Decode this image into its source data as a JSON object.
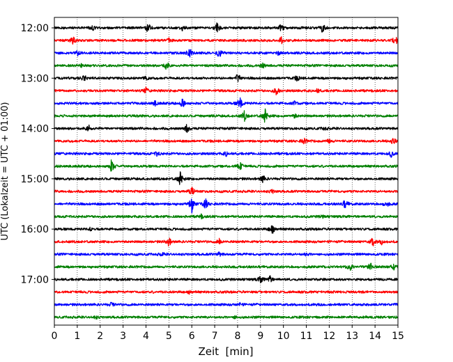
{
  "chart_data": {
    "type": "line",
    "title": "",
    "xlabel": "Zeit  [min]",
    "ylabel": "UTC (Lokalzeit = UTC + 01:00)",
    "xlim": [
      0,
      15
    ],
    "x_ticks": [
      "0",
      "1",
      "2",
      "3",
      "4",
      "5",
      "6",
      "7",
      "8",
      "9",
      "10",
      "11",
      "12",
      "13",
      "14",
      "15"
    ],
    "y_ticks": [
      "12:00",
      "13:00",
      "14:00",
      "15:00",
      "16:00",
      "17:00"
    ],
    "grid": "vertical dotted",
    "colors": [
      "#000000",
      "#ff0000",
      "#0000ff",
      "#008000"
    ],
    "series": [
      {
        "time": "12:00",
        "color": "#000000",
        "events": [
          [
            1.7,
            0.5
          ],
          [
            4.1,
            1.0
          ],
          [
            5.6,
            0.6
          ],
          [
            7.1,
            1.2
          ],
          [
            9.9,
            1.0
          ],
          [
            11.7,
            0.9
          ]
        ]
      },
      {
        "time": "12:15",
        "color": "#ff0000",
        "events": [
          [
            0.8,
            0.8
          ],
          [
            5.0,
            0.4
          ],
          [
            9.9,
            0.7
          ],
          [
            14.9,
            1.2
          ]
        ]
      },
      {
        "time": "12:30",
        "color": "#0000ff",
        "events": [
          [
            1.0,
            0.5
          ],
          [
            5.9,
            1.3
          ],
          [
            7.2,
            1.0
          ],
          [
            9.8,
            0.4
          ]
        ]
      },
      {
        "time": "12:45",
        "color": "#008000",
        "events": [
          [
            1.2,
            0.3
          ],
          [
            4.9,
            0.9
          ],
          [
            9.1,
            0.5
          ]
        ]
      },
      {
        "time": "13:00",
        "color": "#000000",
        "events": [
          [
            1.3,
            0.8
          ],
          [
            4.0,
            0.4
          ],
          [
            8.0,
            0.9
          ],
          [
            10.6,
            0.5
          ]
        ]
      },
      {
        "time": "13:15",
        "color": "#ff0000",
        "events": [
          [
            4.0,
            0.6
          ],
          [
            9.7,
            0.9
          ],
          [
            11.5,
            0.4
          ]
        ]
      },
      {
        "time": "13:30",
        "color": "#0000ff",
        "events": [
          [
            4.4,
            0.5
          ],
          [
            5.6,
            1.0
          ],
          [
            8.1,
            1.3
          ],
          [
            10.5,
            0.4
          ]
        ]
      },
      {
        "time": "13:45",
        "color": "#008000",
        "events": [
          [
            8.3,
            1.0
          ],
          [
            9.2,
            1.5
          ],
          [
            10.5,
            0.4
          ]
        ]
      },
      {
        "time": "14:00",
        "color": "#000000",
        "events": [
          [
            1.5,
            0.8
          ],
          [
            5.8,
            1.0
          ],
          [
            11.8,
            0.3
          ]
        ]
      },
      {
        "time": "14:15",
        "color": "#ff0000",
        "events": [
          [
            10.9,
            0.6
          ],
          [
            12.0,
            0.5
          ],
          [
            14.8,
            0.8
          ]
        ]
      },
      {
        "time": "14:30",
        "color": "#0000ff",
        "events": [
          [
            4.5,
            0.5
          ],
          [
            7.5,
            0.4
          ],
          [
            14.7,
            0.6
          ]
        ]
      },
      {
        "time": "14:45",
        "color": "#008000",
        "events": [
          [
            2.5,
            1.4
          ],
          [
            8.1,
            1.1
          ]
        ]
      },
      {
        "time": "15:00",
        "color": "#000000",
        "events": [
          [
            5.5,
            1.5
          ],
          [
            9.1,
            0.8
          ]
        ]
      },
      {
        "time": "15:15",
        "color": "#ff0000",
        "events": [
          [
            6.0,
            0.9
          ],
          [
            9.5,
            0.4
          ]
        ]
      },
      {
        "time": "15:30",
        "color": "#0000ff",
        "events": [
          [
            6.0,
            1.6
          ],
          [
            6.6,
            1.1
          ],
          [
            12.7,
            1.0
          ],
          [
            14.5,
            0.8
          ]
        ]
      },
      {
        "time": "15:45",
        "color": "#008000",
        "events": [
          [
            6.4,
            0.4
          ],
          [
            11.7,
            0.3
          ]
        ]
      },
      {
        "time": "16:00",
        "color": "#000000",
        "events": [
          [
            1.6,
            0.4
          ],
          [
            9.5,
            1.2
          ]
        ]
      },
      {
        "time": "16:15",
        "color": "#ff0000",
        "events": [
          [
            5.0,
            1.0
          ],
          [
            7.2,
            0.5
          ],
          [
            13.9,
            0.9
          ],
          [
            14.3,
            0.5
          ]
        ]
      },
      {
        "time": "16:30",
        "color": "#0000ff",
        "events": [
          [
            4.7,
            0.3
          ],
          [
            7.2,
            0.4
          ],
          [
            11.0,
            0.3
          ]
        ]
      },
      {
        "time": "16:45",
        "color": "#008000",
        "events": [
          [
            12.9,
            0.8
          ],
          [
            13.8,
            0.9
          ],
          [
            14.8,
            0.6
          ]
        ]
      },
      {
        "time": "17:00",
        "color": "#000000",
        "events": [
          [
            9.0,
            0.7
          ],
          [
            9.4,
            0.8
          ]
        ]
      },
      {
        "time": "17:15",
        "color": "#ff0000",
        "events": [
          [
            5.9,
            0.3
          ]
        ]
      },
      {
        "time": "17:30",
        "color": "#0000ff",
        "events": [
          [
            2.5,
            0.4
          ],
          [
            8.1,
            0.3
          ]
        ]
      },
      {
        "time": "17:45",
        "color": "#008000",
        "events": [
          [
            1.8,
            0.3
          ],
          [
            7.9,
            0.3
          ]
        ]
      }
    ]
  }
}
